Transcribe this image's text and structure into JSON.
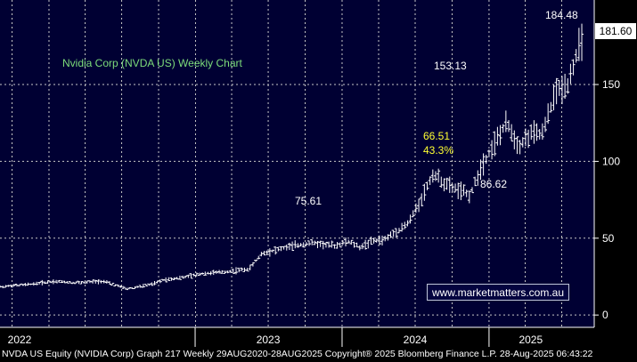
{
  "chart_data": {
    "type": "ohlc",
    "title": "Nvidia Corp (NVDA US) Weekly Chart",
    "ylim": [
      -8,
      205
    ],
    "y_ticks": [
      0,
      50,
      100,
      150
    ],
    "x_tick_labels": [
      "2022",
      "2023",
      "2024",
      "2025"
    ],
    "last_price": "181.60",
    "grid": true,
    "annotations": [
      {
        "text": "184.48",
        "type": "high"
      },
      {
        "text": "153.13",
        "type": "high"
      },
      {
        "text": "75.61",
        "type": "low"
      },
      {
        "text": "86.62",
        "type": "low"
      },
      {
        "text": "66.51",
        "type": "drop"
      },
      {
        "text": "43.3%",
        "type": "drop_pct"
      }
    ],
    "series": [
      {
        "x": [
          "2020-08",
          "2020-11",
          "2021-02",
          "2021-05",
          "2021-08",
          "2021-11",
          "2022-01",
          "2022-03",
          "2022-05",
          "2022-07",
          "2022-09",
          "2022-10",
          "2022-12",
          "2023-01",
          "2023-03",
          "2023-05",
          "2023-06",
          "2023-08",
          "2023-10",
          "2023-12",
          "2024-01",
          "2024-02",
          "2024-03",
          "2024-04",
          "2024-06",
          "2024-07",
          "2024-08",
          "2024-09",
          "2024-11",
          "2024-12",
          "2025-01",
          "2025-02",
          "2025-03",
          "2025-04",
          "2025-05",
          "2025-06",
          "2025-07",
          "2025-08"
        ],
        "values": [
          12,
          13,
          14,
          15,
          18,
          20,
          22,
          21,
          22,
          17,
          20,
          23,
          25,
          27,
          28,
          30,
          40,
          44,
          47,
          45,
          48,
          44,
          48,
          49,
          60,
          75,
          92,
          85,
          78,
          98,
          112,
          125,
          110,
          118,
          118,
          145,
          150,
          176
        ]
      }
    ]
  },
  "watermark": "www.marketmatters.com.au",
  "footer": "NVDA US Equity (NVIDIA Corp) Graph 217  Weekly 29AUG2020-28AUG2025 Copyright® 2025 Bloomberg Finance L.P. 28-Aug-2025 06:43:22"
}
